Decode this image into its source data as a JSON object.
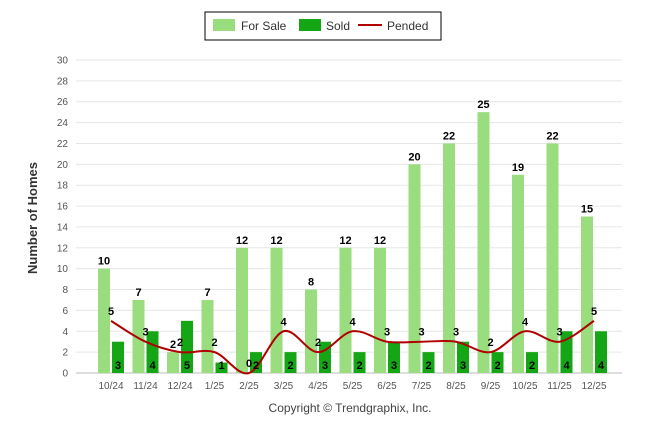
{
  "chart_data": {
    "type": "bar",
    "title": "",
    "xlabel": "",
    "ylabel": "Number of Homes",
    "ylim": [
      0,
      30
    ],
    "y_ticks": [
      0,
      2,
      4,
      6,
      8,
      10,
      12,
      14,
      16,
      18,
      20,
      22,
      24,
      26,
      28,
      30
    ],
    "grid": true,
    "legend_position": "top-center",
    "categories": [
      "10/24",
      "11/24",
      "12/24",
      "1/25",
      "2/25",
      "3/25",
      "4/25",
      "5/25",
      "6/25",
      "7/25",
      "8/25",
      "9/25",
      "10/25",
      "11/25",
      "12/25"
    ],
    "series": [
      {
        "name": "For Sale",
        "type": "bar",
        "color": "#99DD7F",
        "values": [
          10,
          7,
          2,
          7,
          12,
          12,
          8,
          12,
          12,
          20,
          22,
          25,
          19,
          22,
          15
        ]
      },
      {
        "name": "Sold",
        "type": "bar",
        "color": "#14A614",
        "values": [
          3,
          4,
          5,
          1,
          2,
          2,
          3,
          2,
          3,
          2,
          3,
          2,
          2,
          4,
          4
        ]
      },
      {
        "name": "Pended",
        "type": "line",
        "color": "#B00000",
        "values": [
          5,
          3,
          2,
          2,
          0,
          4,
          2,
          4,
          3,
          3,
          3,
          2,
          4,
          3,
          5
        ]
      }
    ],
    "credit": "Copyright © Trendgraphix, Inc."
  }
}
